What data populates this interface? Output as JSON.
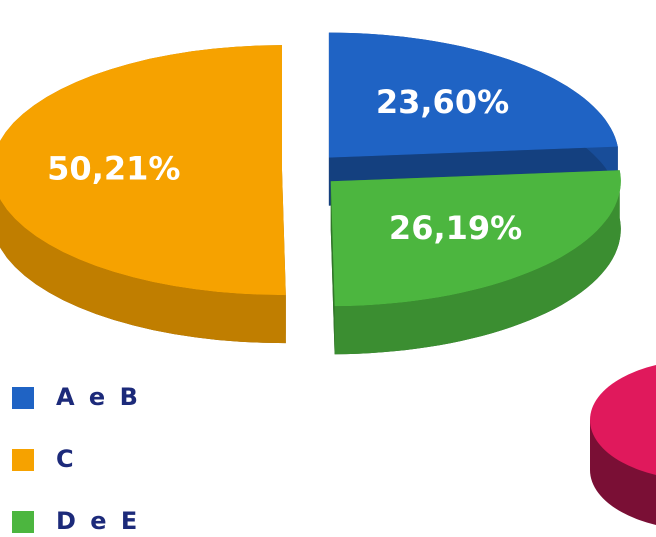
{
  "chart_data": {
    "type": "pie",
    "categories": [
      "A e B",
      "C",
      "D e E"
    ],
    "values": [
      23.6,
      50.21,
      26.19
    ],
    "value_labels": [
      "23,60%",
      "50,21%",
      "26,19%"
    ],
    "colors": [
      "#1f63c4",
      "#f6a200",
      "#4cb63f"
    ],
    "legend": "bottom-left"
  }
}
